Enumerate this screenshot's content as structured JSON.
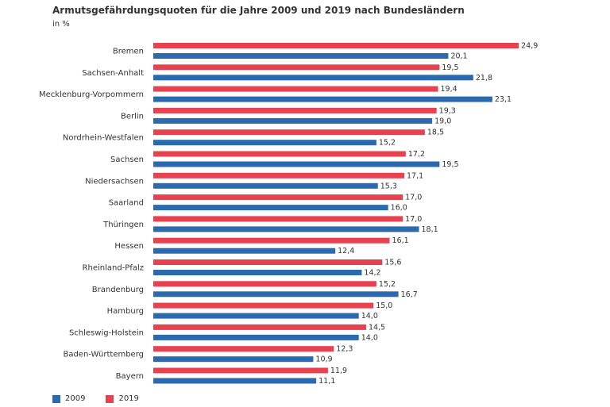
{
  "chart_data": {
    "type": "bar",
    "orientation": "horizontal",
    "title": "Armutsgefährdungsquoten für die Jahre 2009 und 2019 nach Bundesländern",
    "subtitle": "in %",
    "xlabel": "",
    "ylabel": "",
    "xlim": [
      0,
      25
    ],
    "grid": false,
    "legend_position": "bottom-left",
    "categories": [
      "Bremen",
      "Sachsen-Anhalt",
      "Mecklenburg-Vorpommern",
      "Berlin",
      "Nordrhein-Westfalen",
      "Sachsen",
      "Niedersachsen",
      "Saarland",
      "Thüringen",
      "Hessen",
      "Rheinland-Pfalz",
      "Brandenburg",
      "Hamburg",
      "Schleswig-Holstein",
      "Baden-Württemberg",
      "Bayern"
    ],
    "series": [
      {
        "name": "2019",
        "color": "#e8414f",
        "values": [
          24.9,
          19.5,
          19.4,
          19.3,
          18.5,
          17.2,
          17.1,
          17.0,
          17.0,
          16.1,
          15.6,
          15.2,
          15.0,
          14.5,
          12.3,
          11.9
        ],
        "labels": [
          "24,9",
          "19,5",
          "19,4",
          "19,3",
          "18,5",
          "17,2",
          "17,1",
          "17,0",
          "17,0",
          "16,1",
          "15,6",
          "15,2",
          "15,0",
          "14,5",
          "12,3",
          "11,9"
        ]
      },
      {
        "name": "2009",
        "color": "#2b6aae",
        "values": [
          20.1,
          21.8,
          23.1,
          19.0,
          15.2,
          19.5,
          15.3,
          16.0,
          18.1,
          12.4,
          14.2,
          16.7,
          14.0,
          14.0,
          10.9,
          11.1
        ],
        "labels": [
          "20,1",
          "21,8",
          "23,1",
          "19,0",
          "15,2",
          "19,5",
          "15,3",
          "16,0",
          "18,1",
          "12,4",
          "14,2",
          "16,7",
          "14,0",
          "14,0",
          "10,9",
          "11,1"
        ]
      }
    ],
    "legend": [
      {
        "name": "2009",
        "color": "#2b6aae"
      },
      {
        "name": "2019",
        "color": "#e8414f"
      }
    ]
  }
}
